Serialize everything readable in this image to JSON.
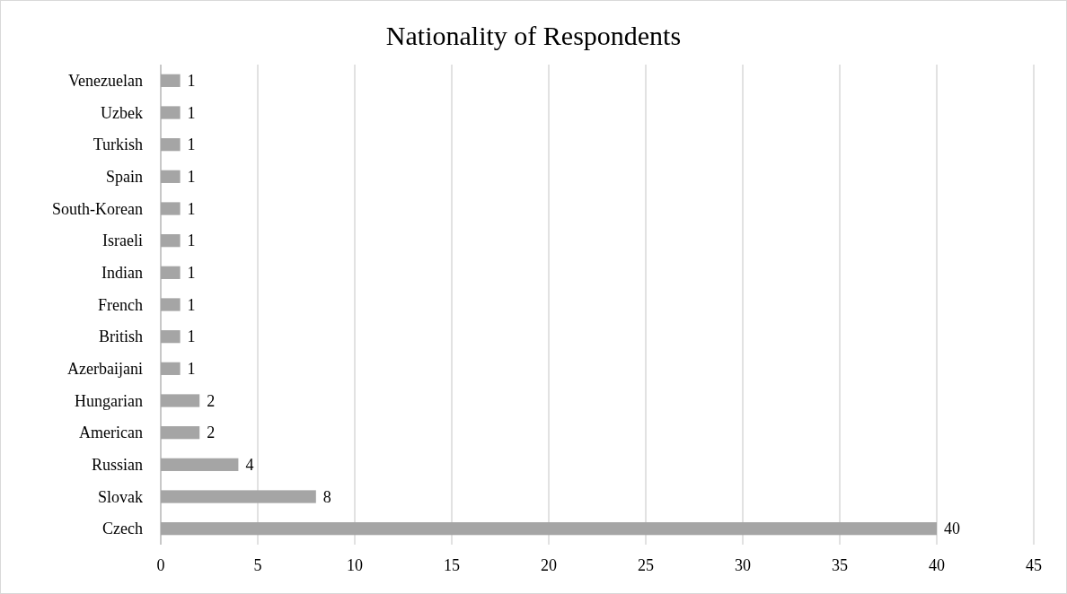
{
  "chart_data": {
    "type": "bar",
    "orientation": "horizontal",
    "title": "Nationality of Respondents",
    "categories": [
      "Venezuelan",
      "Uzbek",
      "Turkish",
      "Spain",
      "South-Korean",
      "Israeli",
      "Indian",
      "French",
      "British",
      "Azerbaijani",
      "Hungarian",
      "American",
      "Russian",
      "Slovak",
      "Czech"
    ],
    "values": [
      1,
      1,
      1,
      1,
      1,
      1,
      1,
      1,
      1,
      1,
      2,
      2,
      4,
      8,
      40
    ],
    "color": "#a5a5a5",
    "xlim": [
      0,
      45
    ],
    "xticks": [
      0,
      5,
      10,
      15,
      20,
      25,
      30,
      35,
      40,
      45
    ],
    "grid": "x",
    "data_labels": true
  }
}
